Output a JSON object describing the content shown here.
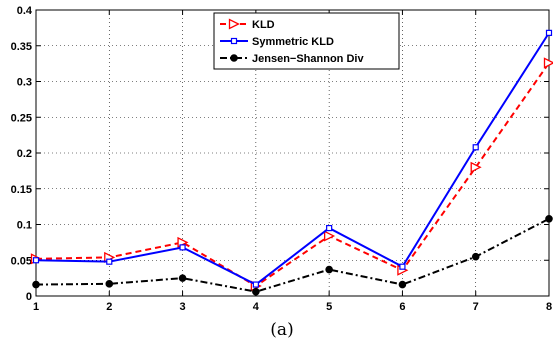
{
  "caption": "(a)",
  "chart_data": {
    "type": "line",
    "x": [
      1,
      2,
      3,
      4,
      5,
      6,
      7,
      8
    ],
    "xlim": [
      1,
      8
    ],
    "ylim": [
      0,
      0.4
    ],
    "xticks": [
      "1",
      "2",
      "3",
      "4",
      "5",
      "6",
      "7",
      "8"
    ],
    "yticks": [
      "0",
      "0.05",
      "0.1",
      "0.15",
      "0.2",
      "0.25",
      "0.3",
      "0.35",
      "0.4"
    ],
    "grid": true,
    "legend_position": "top-center",
    "series": [
      {
        "name": "KLD",
        "values": [
          0.052,
          0.054,
          0.075,
          0.014,
          0.084,
          0.036,
          0.18,
          0.326
        ],
        "color": "#ff0000",
        "dash": "dashed",
        "marker": "triangle-right"
      },
      {
        "name": "Symmetric KLD",
        "values": [
          0.05,
          0.048,
          0.068,
          0.016,
          0.095,
          0.041,
          0.208,
          0.368
        ],
        "color": "#0000ff",
        "dash": "solid",
        "marker": "square"
      },
      {
        "name": "Jensen−Shannon Div",
        "values": [
          0.016,
          0.017,
          0.025,
          0.006,
          0.037,
          0.016,
          0.055,
          0.108
        ],
        "color": "#000000",
        "dash": "dashdot",
        "marker": "circle"
      }
    ]
  }
}
